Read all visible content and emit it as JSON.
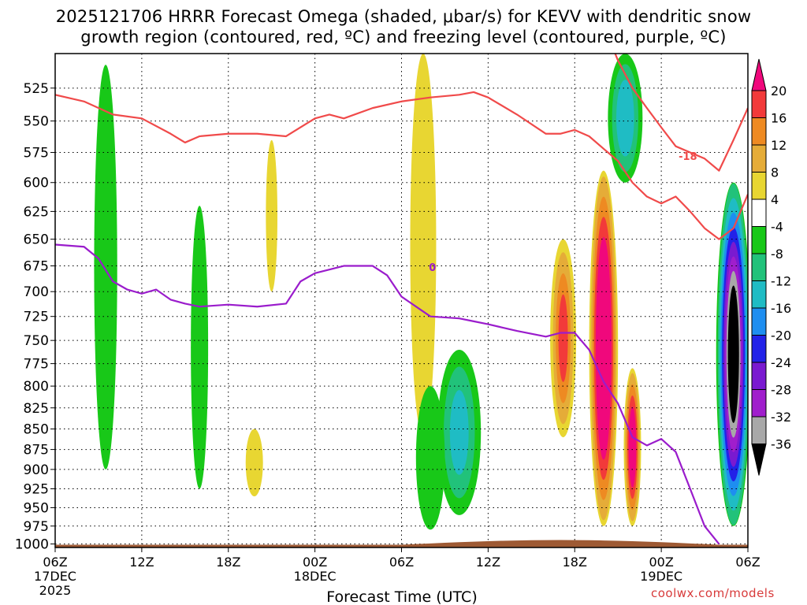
{
  "chart_data": {
    "type": "heatmap",
    "title": "2025121706 HRRR Forecast Omega (shaded, μbar/s) for KEVV with dendritic snow\ngrowth region (contoured, red, ºC) and freezing level (contoured, purple, ºC)",
    "xlabel": "Forecast Time (UTC)",
    "ylabel": "",
    "x_ticks": [
      "06Z",
      "12Z",
      "18Z",
      "00Z",
      "06Z",
      "12Z",
      "18Z",
      "00Z",
      "06Z"
    ],
    "x_tick_hours": [
      0,
      6,
      12,
      18,
      24,
      30,
      36,
      42,
      48
    ],
    "x_date_labels": [
      {
        "hour": 0,
        "text": "17DEC"
      },
      {
        "hour": 18,
        "text": "18DEC"
      },
      {
        "hour": 42,
        "text": "19DEC"
      }
    ],
    "year_label": "2025",
    "xlim": [
      0,
      48
    ],
    "y_ticks": [
      525,
      550,
      575,
      600,
      625,
      650,
      675,
      700,
      725,
      750,
      775,
      800,
      825,
      850,
      875,
      900,
      925,
      950,
      975,
      1000
    ],
    "ylim": [
      500,
      1005
    ],
    "y_scale": "log-pressure",
    "grid": true,
    "colorbar": {
      "labels": [
        "20",
        "16",
        "12",
        "8",
        "4",
        "-4",
        "-8",
        "-12",
        "-16",
        "-20",
        "-24",
        "-28",
        "-32",
        "-36"
      ],
      "label_values": [
        20,
        16,
        12,
        8,
        4,
        -4,
        -8,
        -12,
        -16,
        -20,
        -24,
        -28,
        -32,
        -36
      ],
      "bands": [
        {
          "range": [
            20,
            40
          ],
          "color": "#f0087c"
        },
        {
          "range": [
            16,
            20
          ],
          "color": "#f23a3a"
        },
        {
          "range": [
            12,
            16
          ],
          "color": "#ee8a22"
        },
        {
          "range": [
            8,
            12
          ],
          "color": "#e5ac38"
        },
        {
          "range": [
            4,
            8
          ],
          "color": "#e8d632"
        },
        {
          "range": [
            -4,
            4
          ],
          "color": "#ffffff"
        },
        {
          "range": [
            -8,
            -4
          ],
          "color": "#18c818"
        },
        {
          "range": [
            -12,
            -8
          ],
          "color": "#21c27a"
        },
        {
          "range": [
            -16,
            -12
          ],
          "color": "#1fbcc4"
        },
        {
          "range": [
            -20,
            -16
          ],
          "color": "#1e8ef0"
        },
        {
          "range": [
            -24,
            -20
          ],
          "color": "#2222e8"
        },
        {
          "range": [
            -28,
            -24
          ],
          "color": "#7a1ad0"
        },
        {
          "range": [
            -32,
            -28
          ],
          "color": "#a01ecc"
        },
        {
          "range": [
            -36,
            -32
          ],
          "color": "#a8a8a8"
        },
        {
          "range": [
            -60,
            -36
          ],
          "color": "#000000"
        }
      ]
    },
    "omega_features": [
      {
        "name": "rising-band-1",
        "hour": 3.5,
        "p_top": 508,
        "p_bottom": 900,
        "half_width_h": 0.8,
        "omega": -5
      },
      {
        "name": "rising-band-2",
        "hour": 10.0,
        "p_top": 620,
        "p_bottom": 925,
        "half_width_h": 0.6,
        "omega": -7
      },
      {
        "name": "sinking-band-1",
        "hour": 15.0,
        "p_top": 565,
        "p_bottom": 700,
        "half_width_h": 0.4,
        "omega": 5
      },
      {
        "name": "sinking-band-2",
        "hour": 13.8,
        "p_top": 850,
        "p_bottom": 935,
        "half_width_h": 0.6,
        "omega": 5
      },
      {
        "name": "sinking-band-3",
        "hour": 25.5,
        "p_top": 500,
        "p_bottom": 860,
        "half_width_h": 0.9,
        "omega": 6
      },
      {
        "name": "rising-band-3",
        "hour": 28.0,
        "p_top": 760,
        "p_bottom": 960,
        "half_width_h": 1.5,
        "omega": -12
      },
      {
        "name": "rising-band-4",
        "hour": 26.0,
        "p_top": 800,
        "p_bottom": 980,
        "half_width_h": 1.0,
        "omega": -6
      },
      {
        "name": "sinking-core-main",
        "hour": 38.0,
        "p_top": 590,
        "p_bottom": 975,
        "half_width_h": 1.0,
        "omega": 30
      },
      {
        "name": "sinking-core-2",
        "hour": 35.2,
        "p_top": 650,
        "p_bottom": 860,
        "half_width_h": 0.9,
        "omega": 16
      },
      {
        "name": "sinking-core-3",
        "hour": 40.0,
        "p_top": 780,
        "p_bottom": 975,
        "half_width_h": 0.6,
        "omega": 24
      },
      {
        "name": "rising-cell-east",
        "hour": 39.5,
        "p_top": 500,
        "p_bottom": 600,
        "half_width_h": 1.2,
        "omega": -14
      },
      {
        "name": "rising-core-east",
        "hour": 47.0,
        "p_top": 600,
        "p_bottom": 975,
        "half_width_h": 1.2,
        "omega": -40
      }
    ],
    "dendritic_growth_contour": {
      "label": "-18",
      "color": "#f04a4a",
      "series": [
        {
          "name": "upper",
          "x": [
            0,
            2,
            4,
            6,
            8,
            9,
            10,
            12,
            14,
            16,
            18,
            19,
            20,
            22,
            24,
            26,
            28,
            29,
            30,
            32,
            34,
            35,
            36,
            37,
            38,
            39,
            40,
            41,
            42,
            43,
            44,
            45,
            46,
            47,
            48
          ],
          "y": [
            530,
            535,
            545,
            548,
            560,
            567,
            562,
            560,
            560,
            562,
            548,
            545,
            548,
            540,
            535,
            532,
            530,
            528,
            532,
            545,
            560,
            560,
            557,
            562,
            572,
            582,
            600,
            612,
            618,
            612,
            625,
            640,
            650,
            640,
            610
          ]
        },
        {
          "name": "lower",
          "x": [
            38,
            39,
            40,
            41,
            42,
            43,
            44,
            45,
            46,
            47,
            48
          ],
          "y": [
            480,
            505,
            525,
            540,
            555,
            570,
            575,
            580,
            590,
            565,
            540
          ]
        }
      ]
    },
    "freezing_level_contour": {
      "label": "0",
      "color": "#9a1ccc",
      "x": [
        0,
        2,
        3,
        4,
        5,
        6,
        7,
        8,
        9,
        10,
        12,
        14,
        16,
        17,
        18,
        20,
        22,
        23,
        24,
        26,
        28,
        29,
        30,
        32,
        34,
        35,
        36,
        37,
        38,
        39,
        40,
        41,
        42,
        43,
        44,
        45,
        46
      ],
      "y": [
        655,
        657,
        668,
        690,
        698,
        702,
        698,
        708,
        712,
        715,
        713,
        715,
        712,
        690,
        682,
        675,
        675,
        684,
        705,
        725,
        727,
        730,
        733,
        740,
        746,
        742,
        742,
        760,
        795,
        820,
        860,
        870,
        862,
        878,
        925,
        975,
        1000
      ]
    },
    "terrain": {
      "color": "#9e5a34",
      "p_surface": 1000
    }
  },
  "watermark": "coolwx.com/models"
}
